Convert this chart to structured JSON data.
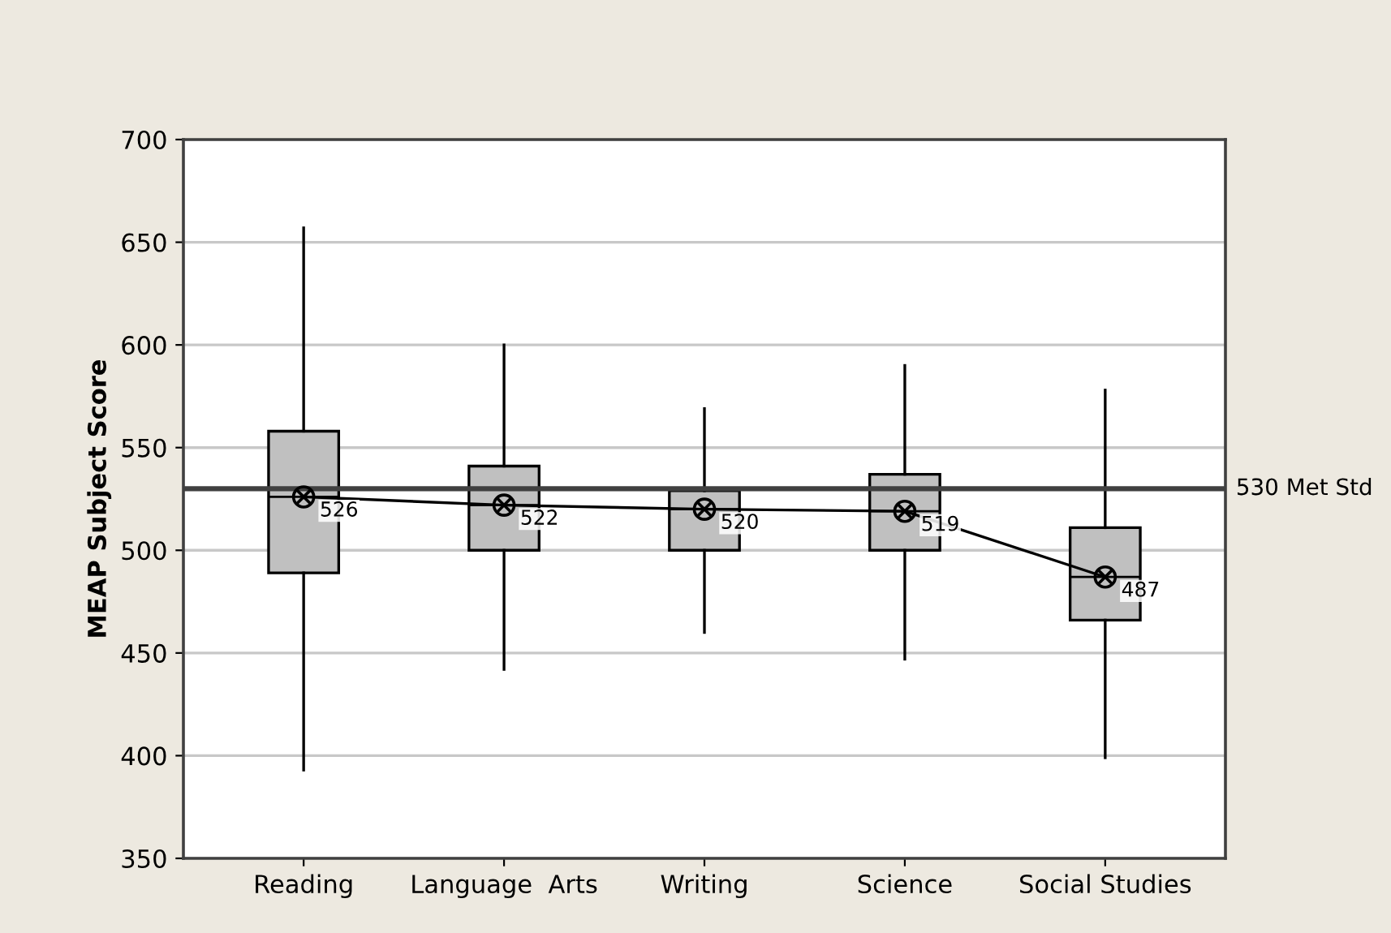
{
  "chart_data": {
    "type": "box",
    "ylabel": "MEAP Subject Score",
    "categories": [
      "Reading",
      "Language  Arts",
      "Writing",
      "Science",
      "Social Studies"
    ],
    "boxes": [
      {
        "low": 393,
        "q1": 489,
        "median": 526,
        "q3": 558,
        "high": 657
      },
      {
        "low": 442,
        "q1": 500,
        "median": 522,
        "q3": 541,
        "high": 600
      },
      {
        "low": 460,
        "q1": 500,
        "median": 520,
        "q3": 529,
        "high": 569
      },
      {
        "low": 447,
        "q1": 500,
        "median": 519,
        "q3": 537,
        "high": 590
      },
      {
        "low": 399,
        "q1": 466,
        "median": 487,
        "q3": 511,
        "high": 578
      }
    ],
    "color": "#c0c0c0",
    "series": [
      {
        "type": "line",
        "color": "#000000",
        "values": [
          526,
          522,
          520,
          519,
          487
        ],
        "marker": "circle-cross",
        "data_labels": true
      }
    ],
    "ylim": [
      350,
      700
    ],
    "yticks": [
      350,
      400,
      450,
      500,
      550,
      600,
      650,
      700
    ],
    "grid": "y",
    "ref_lines": [
      {
        "axis": "y",
        "value": 530,
        "label": "530 Met Std",
        "color": "#404040"
      }
    ]
  }
}
